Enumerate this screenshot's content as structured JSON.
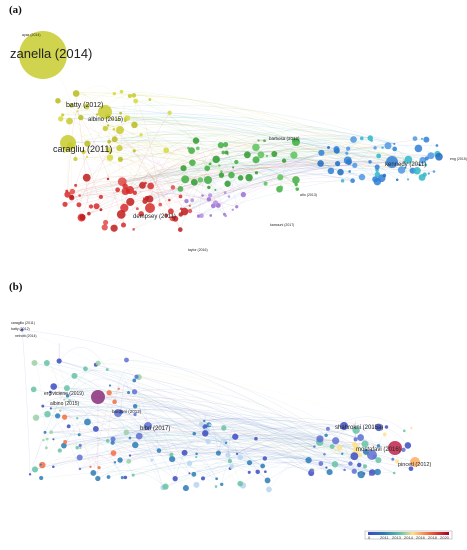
{
  "panel_a": {
    "label": "(a)",
    "node_labels": [
      "zanella (2014)",
      "batty (2012)",
      "albino (2015)",
      "caragliu (2011)",
      "kennedy (2011)",
      "dempsey (2011)",
      "barbosa (2012)"
    ],
    "small_labels": [
      "ayaz (2014)",
      "kamouni (2017)",
      "año (2013)",
      "eng (2015)",
      "taylor (2016)"
    ]
  },
  "panel_b": {
    "label": "(b)",
    "node_labels": [
      "ergiviciene (2019)",
      "albino (2015)",
      "bardoni (2012)",
      "bibri (2017)",
      "shahrokni (2015a)",
      "mostafavi (2016)",
      "pincetl (2012)"
    ],
    "small_labels": [
      "caragiliu (2011)",
      "batty (2012)",
      "neirotti (2014)"
    ]
  },
  "colorbar": {
    "ticks": [
      "0",
      "2011",
      "2013",
      "2014",
      "2016",
      "2018",
      "2020"
    ],
    "colors": [
      "#3b4cc0",
      "#2c7bb6",
      "#00a6ca",
      "#66c2a5",
      "#fee08b",
      "#f46d43",
      "#d73027",
      "#a50026"
    ]
  }
}
